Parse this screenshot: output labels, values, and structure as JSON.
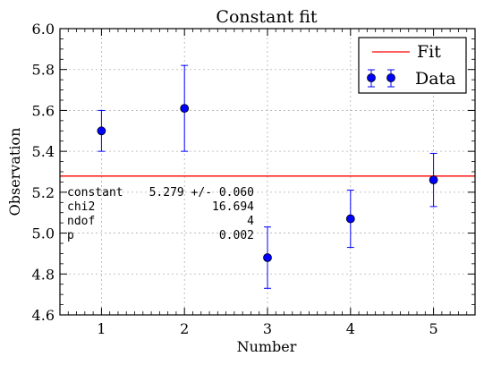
{
  "chart_data": {
    "type": "scatter",
    "title": "Constant fit",
    "xlabel": "Number",
    "ylabel": "Observation",
    "xlim": [
      0.5,
      5.5
    ],
    "ylim": [
      4.6,
      6.0
    ],
    "x_ticks": [
      1,
      2,
      3,
      4,
      5
    ],
    "y_ticks": [
      4.6,
      4.8,
      5.0,
      5.2,
      5.4,
      5.6,
      5.8,
      6.0
    ],
    "x_tick_labels": [
      "1",
      "2",
      "3",
      "4",
      "5"
    ],
    "y_tick_labels": [
      "4.6",
      "4.8",
      "5.0",
      "5.2",
      "5.4",
      "5.6",
      "5.8",
      "6.0"
    ],
    "grid": true,
    "legend_position": "top-right",
    "series": [
      {
        "name": "Data",
        "kind": "errorbar",
        "color": "#0000ff",
        "x": [
          1,
          2,
          3,
          4,
          5
        ],
        "y": [
          5.5,
          5.61,
          4.88,
          5.07,
          5.26
        ],
        "yerr": [
          0.1,
          0.21,
          0.15,
          0.14,
          0.13
        ]
      },
      {
        "name": "Fit",
        "kind": "hline",
        "color": "#ff0000",
        "y": 5.279
      }
    ],
    "annotation": [
      {
        "label": "constant",
        "value": "5.279 +/- 0.060"
      },
      {
        "label": "chi2",
        "value": "16.694"
      },
      {
        "label": "ndof",
        "value": "4"
      },
      {
        "label": "p",
        "value": "0.002"
      }
    ]
  }
}
